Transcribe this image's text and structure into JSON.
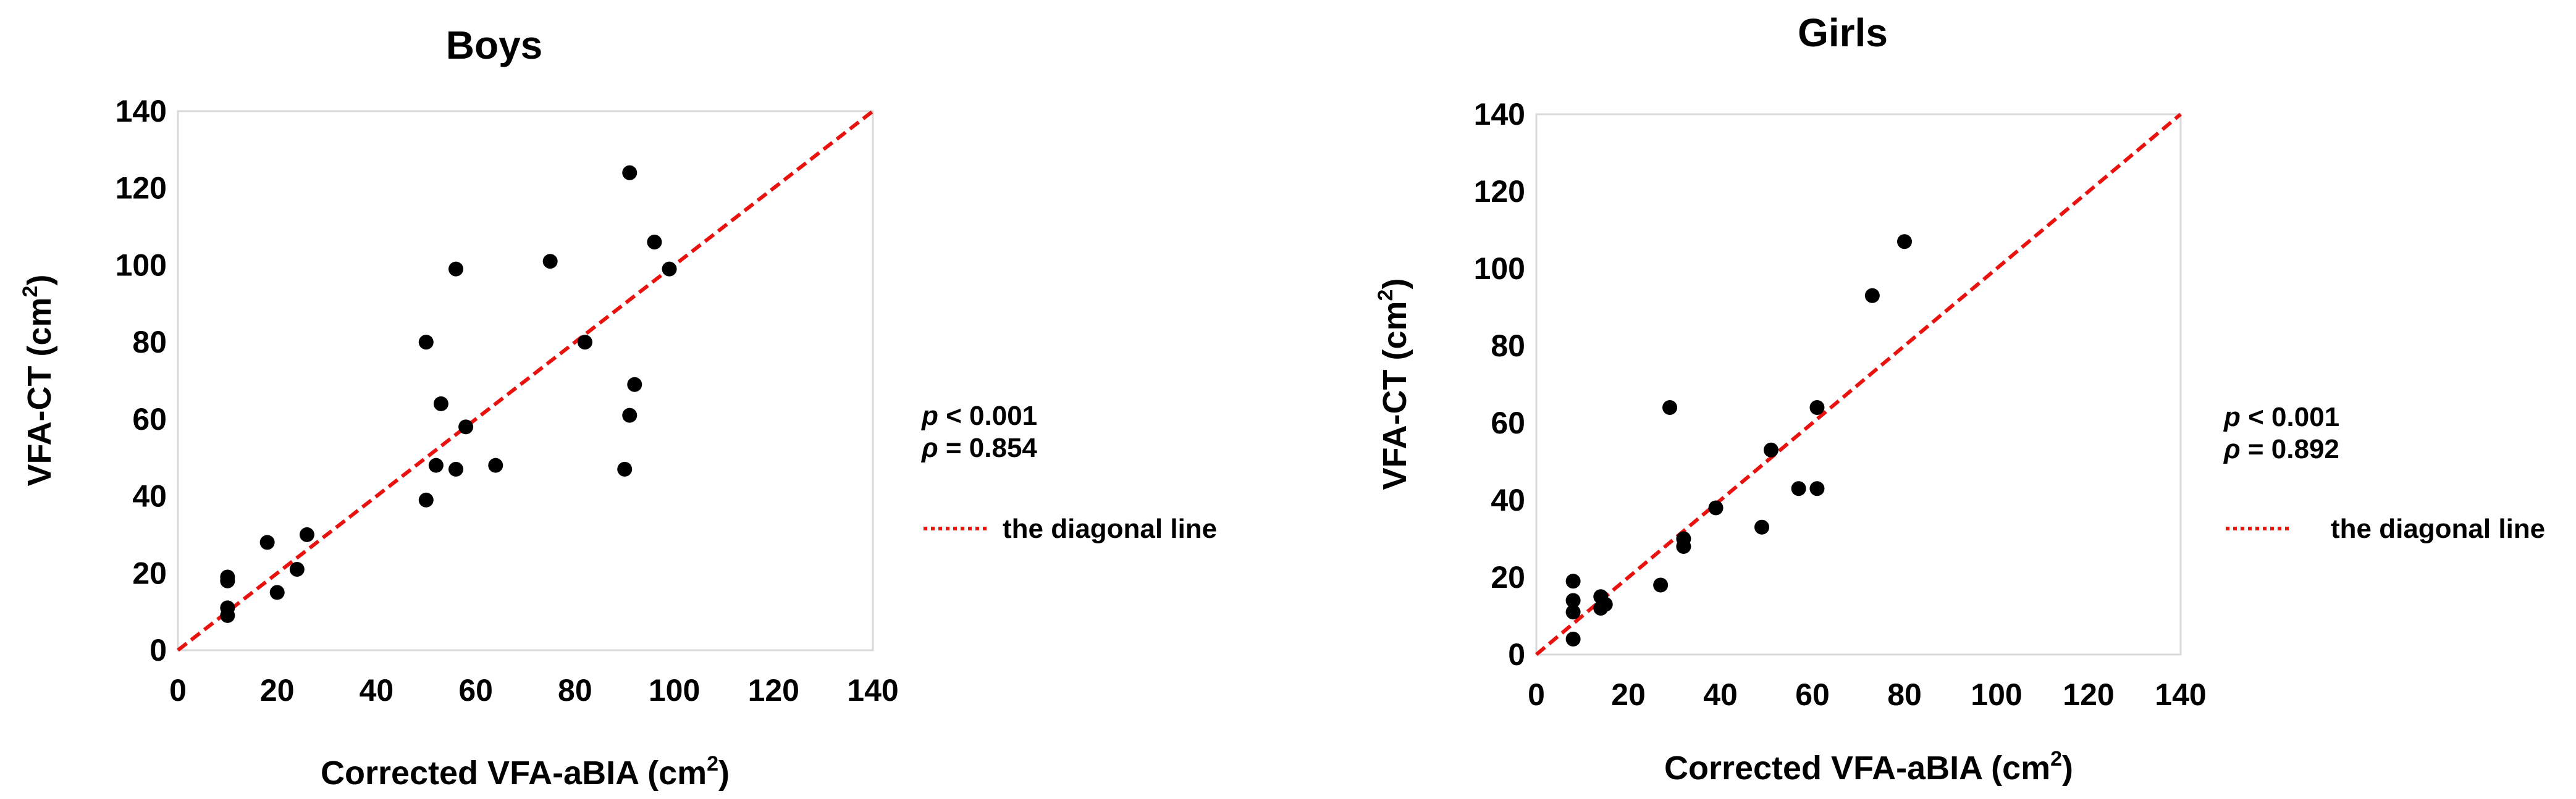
{
  "chart_data": [
    {
      "type": "scatter",
      "title": "Boys",
      "xlabel": "Corrected VFA-aBIA",
      "xlabel_unit": "(cm",
      "ylabel": "VFA-CT",
      "ylabel_unit": "(cm",
      "unit_sup": "2",
      "unit_close": ")",
      "xlim": [
        0,
        140
      ],
      "ylim": [
        0,
        140
      ],
      "xticks": [
        "0",
        "20",
        "40",
        "60",
        "80",
        "100",
        "120",
        "140"
      ],
      "yticks": [
        "0",
        "20",
        "40",
        "60",
        "80",
        "100",
        "120",
        "140"
      ],
      "grid": false,
      "stats": {
        "p_symbol": "p",
        "p_text": "< 0.001",
        "rho_symbol": "ρ",
        "rho_text": "= 0.854"
      },
      "legend_label": "the diagonal line",
      "legend_position": "right",
      "line_color": "#e8130f",
      "point_color": "#000000",
      "points": [
        [
          10,
          9
        ],
        [
          10,
          11
        ],
        [
          10,
          18
        ],
        [
          10,
          19
        ],
        [
          18,
          28
        ],
        [
          20,
          15
        ],
        [
          24,
          21
        ],
        [
          26,
          30
        ],
        [
          50,
          39
        ],
        [
          50,
          80
        ],
        [
          52,
          48
        ],
        [
          53,
          64
        ],
        [
          56,
          47
        ],
        [
          56,
          99
        ],
        [
          58,
          58
        ],
        [
          64,
          48
        ],
        [
          75,
          101
        ],
        [
          82,
          80
        ],
        [
          90,
          47
        ],
        [
          91,
          124
        ],
        [
          91,
          61
        ],
        [
          92,
          69
        ],
        [
          96,
          106
        ],
        [
          99,
          99
        ]
      ]
    },
    {
      "type": "scatter",
      "title": "Girls",
      "xlabel": "Corrected VFA-aBIA",
      "xlabel_unit": "(cm",
      "ylabel": "VFA-CT",
      "ylabel_unit": "(cm",
      "unit_sup": "2",
      "unit_close": ")",
      "xlim": [
        0,
        140
      ],
      "ylim": [
        0,
        140
      ],
      "xticks": [
        "0",
        "20",
        "40",
        "60",
        "80",
        "100",
        "120",
        "140"
      ],
      "yticks": [
        "0",
        "20",
        "40",
        "60",
        "80",
        "100",
        "120",
        "140"
      ],
      "grid": false,
      "stats": {
        "p_symbol": "p",
        "p_text": "< 0.001",
        "rho_symbol": "ρ",
        "rho_text": "= 0.892"
      },
      "legend_label": "the diagonal line",
      "legend_position": "right",
      "line_color": "#e8130f",
      "point_color": "#000000",
      "points": [
        [
          8,
          4
        ],
        [
          8,
          11
        ],
        [
          8,
          14
        ],
        [
          8,
          19
        ],
        [
          14,
          12
        ],
        [
          14,
          15
        ],
        [
          15,
          13
        ],
        [
          27,
          18
        ],
        [
          29,
          64
        ],
        [
          32,
          28
        ],
        [
          32,
          30
        ],
        [
          39,
          38
        ],
        [
          49,
          33
        ],
        [
          51,
          53
        ],
        [
          57,
          43
        ],
        [
          61,
          43
        ],
        [
          61,
          64
        ],
        [
          73,
          93
        ],
        [
          80,
          107
        ]
      ]
    }
  ]
}
